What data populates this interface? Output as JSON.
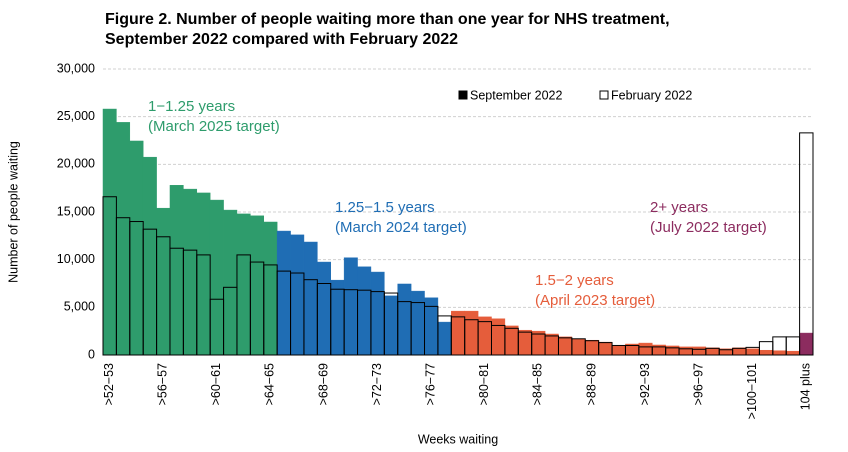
{
  "chart_data": {
    "type": "bar",
    "title": [
      "Figure 2. Number of people waiting more than one year for NHS treatment,",
      "September 2022 compared with February 2022"
    ],
    "x_label": "Weeks waiting",
    "y_label": "Number of people waiting",
    "categories": [
      ">52−53",
      null,
      null,
      null,
      ">56−57",
      null,
      null,
      null,
      ">60−61",
      null,
      null,
      null,
      ">64−65",
      null,
      null,
      null,
      ">68−69",
      null,
      null,
      null,
      ">72−73",
      null,
      null,
      null,
      ">76−77",
      null,
      null,
      null,
      ">80−81",
      null,
      null,
      null,
      ">84−85",
      null,
      null,
      null,
      ">88−89",
      null,
      null,
      null,
      ">92−93",
      null,
      null,
      null,
      ">96−97",
      null,
      null,
      null,
      ">100−101",
      null,
      null,
      null,
      "104 plus"
    ],
    "ylim": [
      0,
      30000
    ],
    "yticks": [
      0,
      {
        "value": 5000,
        "label": "5,000"
      },
      {
        "value": 10000,
        "label": "10,000"
      },
      {
        "value": 15000,
        "label": "15,000"
      },
      {
        "value": 20000,
        "label": "20,000"
      },
      {
        "value": 25000,
        "label": "25,000"
      },
      {
        "value": 30000,
        "label": "30,000"
      }
    ],
    "grid": true,
    "series": [
      {
        "name": "September 2022",
        "style": "filled",
        "color": "#000000",
        "values": [
          25800,
          24400,
          22450,
          20750,
          15400,
          17800,
          17400,
          17000,
          16250,
          15200,
          14800,
          14600,
          13950,
          13000,
          12600,
          11850,
          9750,
          7850,
          10200,
          9250,
          8700,
          6200,
          7450,
          6700,
          6000,
          3450,
          4600,
          4600,
          4000,
          3800,
          3050,
          2600,
          2500,
          2200,
          1900,
          1700,
          1550,
          1350,
          950,
          1150,
          1250,
          1050,
          950,
          850,
          850,
          750,
          650,
          750,
          650,
          500,
          450,
          400,
          2300
        ],
        "colors": [
          "#2e9c6c",
          "#2e9c6c",
          "#2e9c6c",
          "#2e9c6c",
          "#2e9c6c",
          "#2e9c6c",
          "#2e9c6c",
          "#2e9c6c",
          "#2e9c6c",
          "#2e9c6c",
          "#2e9c6c",
          "#2e9c6c",
          "#2e9c6c",
          "#1f6db4",
          "#1f6db4",
          "#1f6db4",
          "#1f6db4",
          "#1f6db4",
          "#1f6db4",
          "#1f6db4",
          "#1f6db4",
          "#1f6db4",
          "#1f6db4",
          "#1f6db4",
          "#1f6db4",
          "#1f6db4",
          "#e55d3b",
          "#e55d3b",
          "#e55d3b",
          "#e55d3b",
          "#e55d3b",
          "#e55d3b",
          "#e55d3b",
          "#e55d3b",
          "#e55d3b",
          "#e55d3b",
          "#e55d3b",
          "#e55d3b",
          "#e55d3b",
          "#e55d3b",
          "#e55d3b",
          "#e55d3b",
          "#e55d3b",
          "#e55d3b",
          "#e55d3b",
          "#e55d3b",
          "#e55d3b",
          "#e55d3b",
          "#e55d3b",
          "#e55d3b",
          "#e55d3b",
          "#e55d3b",
          "#8c2c5f"
        ]
      },
      {
        "name": "February 2022",
        "style": "outline",
        "color": "#000000",
        "values": [
          16600,
          14400,
          14000,
          13200,
          12400,
          11200,
          11000,
          10500,
          5850,
          7100,
          10500,
          9750,
          9450,
          8800,
          8600,
          7900,
          7500,
          6900,
          6850,
          6800,
          6650,
          6500,
          5600,
          5500,
          5100,
          4100,
          4000,
          3700,
          3500,
          3100,
          2800,
          2400,
          2200,
          2000,
          1800,
          1700,
          1500,
          1300,
          1000,
          1000,
          850,
          850,
          750,
          650,
          600,
          700,
          550,
          700,
          800,
          1400,
          1900,
          1900,
          23300
        ]
      }
    ],
    "annotations": [
      {
        "lines": [
          "1−1.25 years",
          "(March 2025 target)"
        ],
        "color": "#2e9c6c"
      },
      {
        "lines": [
          "1.25−1.5 years",
          "(March 2024 target)"
        ],
        "color": "#1f6db4"
      },
      {
        "lines": [
          "1.5−2 years",
          "(April 2023 target)"
        ],
        "color": "#e55d3b"
      },
      {
        "lines": [
          "2+ years",
          "(July 2022 target)"
        ],
        "color": "#8c2c5f"
      }
    ]
  }
}
